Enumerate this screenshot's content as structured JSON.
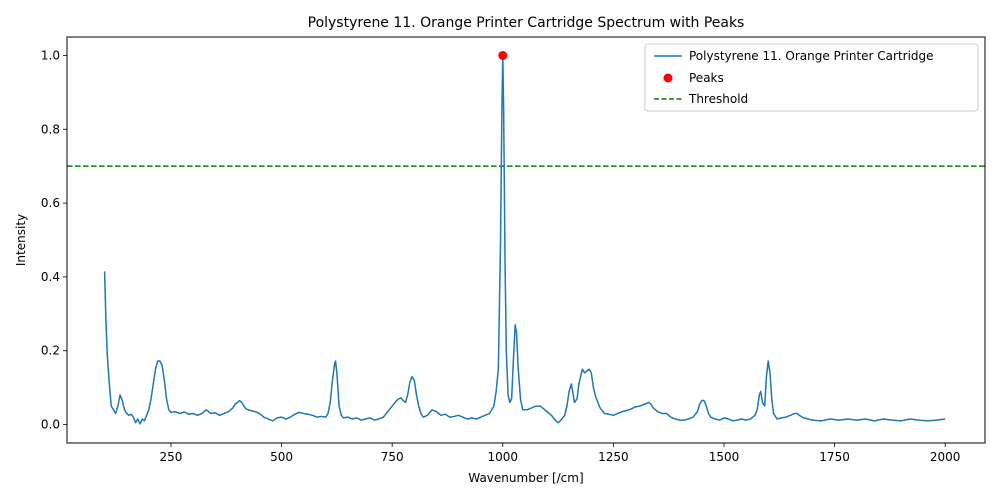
{
  "chart_data": {
    "type": "line",
    "title": "Polystyrene 11. Orange Printer Cartridge Spectrum with Peaks",
    "xlabel": "Wavenumber [/cm]",
    "ylabel": "Intensity",
    "xlim": [
      15,
      2090
    ],
    "ylim": [
      -0.05,
      1.05
    ],
    "xticks": [
      250,
      500,
      750,
      1000,
      1250,
      1500,
      1750,
      2000
    ],
    "yticks": [
      0.0,
      0.2,
      0.4,
      0.6,
      0.8,
      1.0
    ],
    "grid": false,
    "legend_position": "top-right",
    "series": [
      {
        "name": "Polystyrene 11. Orange Printer Cartridge",
        "kind": "line",
        "color": "#1f77b4",
        "points": [
          [
            100,
            0.415
          ],
          [
            103,
            0.28
          ],
          [
            106,
            0.19
          ],
          [
            110,
            0.12
          ],
          [
            115,
            0.05
          ],
          [
            120,
            0.04
          ],
          [
            125,
            0.03
          ],
          [
            130,
            0.05
          ],
          [
            135,
            0.08
          ],
          [
            140,
            0.065
          ],
          [
            145,
            0.04
          ],
          [
            150,
            0.03
          ],
          [
            155,
            0.025
          ],
          [
            160,
            0.028
          ],
          [
            165,
            0.02
          ],
          [
            170,
            0.005
          ],
          [
            175,
            0.015
          ],
          [
            180,
            0.002
          ],
          [
            185,
            0.015
          ],
          [
            190,
            0.01
          ],
          [
            195,
            0.025
          ],
          [
            200,
            0.04
          ],
          [
            205,
            0.07
          ],
          [
            210,
            0.11
          ],
          [
            215,
            0.15
          ],
          [
            220,
            0.172
          ],
          [
            225,
            0.172
          ],
          [
            230,
            0.16
          ],
          [
            235,
            0.12
          ],
          [
            240,
            0.07
          ],
          [
            245,
            0.04
          ],
          [
            250,
            0.033
          ],
          [
            260,
            0.035
          ],
          [
            270,
            0.03
          ],
          [
            280,
            0.034
          ],
          [
            290,
            0.028
          ],
          [
            300,
            0.03
          ],
          [
            310,
            0.025
          ],
          [
            320,
            0.03
          ],
          [
            330,
            0.04
          ],
          [
            340,
            0.03
          ],
          [
            350,
            0.032
          ],
          [
            360,
            0.025
          ],
          [
            370,
            0.03
          ],
          [
            380,
            0.035
          ],
          [
            390,
            0.045
          ],
          [
            395,
            0.055
          ],
          [
            400,
            0.06
          ],
          [
            405,
            0.065
          ],
          [
            410,
            0.06
          ],
          [
            415,
            0.05
          ],
          [
            420,
            0.042
          ],
          [
            430,
            0.038
          ],
          [
            440,
            0.035
          ],
          [
            450,
            0.03
          ],
          [
            460,
            0.02
          ],
          [
            470,
            0.015
          ],
          [
            480,
            0.01
          ],
          [
            490,
            0.018
          ],
          [
            500,
            0.02
          ],
          [
            510,
            0.015
          ],
          [
            520,
            0.02
          ],
          [
            530,
            0.028
          ],
          [
            540,
            0.033
          ],
          [
            550,
            0.03
          ],
          [
            560,
            0.028
          ],
          [
            570,
            0.025
          ],
          [
            580,
            0.02
          ],
          [
            590,
            0.022
          ],
          [
            600,
            0.02
          ],
          [
            605,
            0.03
          ],
          [
            610,
            0.06
          ],
          [
            615,
            0.12
          ],
          [
            620,
            0.165
          ],
          [
            622,
            0.172
          ],
          [
            625,
            0.14
          ],
          [
            630,
            0.05
          ],
          [
            635,
            0.025
          ],
          [
            640,
            0.018
          ],
          [
            650,
            0.02
          ],
          [
            660,
            0.015
          ],
          [
            670,
            0.018
          ],
          [
            680,
            0.012
          ],
          [
            690,
            0.015
          ],
          [
            700,
            0.018
          ],
          [
            710,
            0.012
          ],
          [
            720,
            0.015
          ],
          [
            730,
            0.02
          ],
          [
            740,
            0.035
          ],
          [
            750,
            0.05
          ],
          [
            760,
            0.065
          ],
          [
            765,
            0.07
          ],
          [
            770,
            0.072
          ],
          [
            775,
            0.065
          ],
          [
            780,
            0.06
          ],
          [
            785,
            0.08
          ],
          [
            790,
            0.115
          ],
          [
            795,
            0.13
          ],
          [
            800,
            0.12
          ],
          [
            805,
            0.08
          ],
          [
            810,
            0.05
          ],
          [
            815,
            0.03
          ],
          [
            820,
            0.02
          ],
          [
            830,
            0.025
          ],
          [
            840,
            0.04
          ],
          [
            850,
            0.035
          ],
          [
            860,
            0.025
          ],
          [
            870,
            0.028
          ],
          [
            880,
            0.02
          ],
          [
            890,
            0.022
          ],
          [
            900,
            0.025
          ],
          [
            910,
            0.02
          ],
          [
            920,
            0.015
          ],
          [
            930,
            0.018
          ],
          [
            940,
            0.015
          ],
          [
            950,
            0.02
          ],
          [
            960,
            0.025
          ],
          [
            970,
            0.03
          ],
          [
            980,
            0.05
          ],
          [
            985,
            0.09
          ],
          [
            990,
            0.15
          ],
          [
            995,
            0.5
          ],
          [
            998,
            0.85
          ],
          [
            1000,
            1.0
          ],
          [
            1002,
            0.85
          ],
          [
            1005,
            0.45
          ],
          [
            1008,
            0.2
          ],
          [
            1012,
            0.08
          ],
          [
            1016,
            0.06
          ],
          [
            1020,
            0.07
          ],
          [
            1025,
            0.2
          ],
          [
            1028,
            0.27
          ],
          [
            1031,
            0.25
          ],
          [
            1035,
            0.15
          ],
          [
            1040,
            0.07
          ],
          [
            1045,
            0.04
          ],
          [
            1055,
            0.04
          ],
          [
            1065,
            0.045
          ],
          [
            1075,
            0.05
          ],
          [
            1085,
            0.05
          ],
          [
            1095,
            0.04
          ],
          [
            1100,
            0.035
          ],
          [
            1110,
            0.025
          ],
          [
            1120,
            0.01
          ],
          [
            1125,
            0.005
          ],
          [
            1130,
            0.01
          ],
          [
            1140,
            0.025
          ],
          [
            1145,
            0.05
          ],
          [
            1150,
            0.09
          ],
          [
            1155,
            0.11
          ],
          [
            1158,
            0.09
          ],
          [
            1162,
            0.06
          ],
          [
            1168,
            0.07
          ],
          [
            1172,
            0.11
          ],
          [
            1176,
            0.13
          ],
          [
            1180,
            0.15
          ],
          [
            1185,
            0.14
          ],
          [
            1190,
            0.145
          ],
          [
            1195,
            0.15
          ],
          [
            1200,
            0.14
          ],
          [
            1205,
            0.1
          ],
          [
            1210,
            0.075
          ],
          [
            1215,
            0.06
          ],
          [
            1220,
            0.045
          ],
          [
            1230,
            0.03
          ],
          [
            1240,
            0.028
          ],
          [
            1250,
            0.025
          ],
          [
            1260,
            0.03
          ],
          [
            1270,
            0.035
          ],
          [
            1280,
            0.038
          ],
          [
            1290,
            0.042
          ],
          [
            1300,
            0.048
          ],
          [
            1310,
            0.05
          ],
          [
            1320,
            0.055
          ],
          [
            1330,
            0.06
          ],
          [
            1335,
            0.055
          ],
          [
            1340,
            0.045
          ],
          [
            1350,
            0.035
          ],
          [
            1360,
            0.03
          ],
          [
            1370,
            0.03
          ],
          [
            1380,
            0.02
          ],
          [
            1390,
            0.015
          ],
          [
            1400,
            0.012
          ],
          [
            1410,
            0.012
          ],
          [
            1420,
            0.015
          ],
          [
            1430,
            0.02
          ],
          [
            1440,
            0.035
          ],
          [
            1445,
            0.055
          ],
          [
            1450,
            0.065
          ],
          [
            1455,
            0.065
          ],
          [
            1460,
            0.05
          ],
          [
            1465,
            0.03
          ],
          [
            1470,
            0.02
          ],
          [
            1480,
            0.015
          ],
          [
            1490,
            0.012
          ],
          [
            1500,
            0.018
          ],
          [
            1510,
            0.015
          ],
          [
            1520,
            0.01
          ],
          [
            1530,
            0.012
          ],
          [
            1540,
            0.015
          ],
          [
            1550,
            0.012
          ],
          [
            1560,
            0.015
          ],
          [
            1570,
            0.025
          ],
          [
            1575,
            0.04
          ],
          [
            1580,
            0.08
          ],
          [
            1583,
            0.09
          ],
          [
            1587,
            0.06
          ],
          [
            1592,
            0.05
          ],
          [
            1596,
            0.13
          ],
          [
            1600,
            0.172
          ],
          [
            1604,
            0.14
          ],
          [
            1608,
            0.07
          ],
          [
            1612,
            0.03
          ],
          [
            1620,
            0.015
          ],
          [
            1630,
            0.018
          ],
          [
            1640,
            0.02
          ],
          [
            1650,
            0.025
          ],
          [
            1660,
            0.03
          ],
          [
            1665,
            0.03
          ],
          [
            1670,
            0.025
          ],
          [
            1680,
            0.018
          ],
          [
            1690,
            0.015
          ],
          [
            1700,
            0.012
          ],
          [
            1720,
            0.01
          ],
          [
            1740,
            0.015
          ],
          [
            1760,
            0.012
          ],
          [
            1780,
            0.015
          ],
          [
            1800,
            0.012
          ],
          [
            1820,
            0.015
          ],
          [
            1840,
            0.01
          ],
          [
            1860,
            0.015
          ],
          [
            1880,
            0.012
          ],
          [
            1900,
            0.01
          ],
          [
            1920,
            0.015
          ],
          [
            1940,
            0.012
          ],
          [
            1960,
            0.01
          ],
          [
            1980,
            0.012
          ],
          [
            2000,
            0.015
          ]
        ]
      },
      {
        "name": "Peaks",
        "kind": "scatter",
        "color": "#ff0000",
        "points": [
          [
            1000,
            1.0
          ]
        ]
      },
      {
        "name": "Threshold",
        "kind": "hline",
        "color": "#008000",
        "y": 0.7
      }
    ]
  }
}
